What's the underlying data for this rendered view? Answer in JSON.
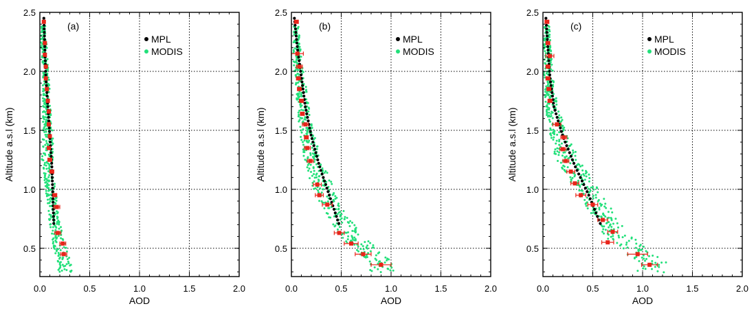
{
  "colors": {
    "mpl": "#000000",
    "modis": "#22e07a",
    "error": "#e8251a",
    "axis": "#000000",
    "grid": "#000000"
  },
  "chart_data": [
    {
      "type": "scatter",
      "panel_label": "(a)",
      "xlabel": "AOD",
      "ylabel": "Altitude a.s.l (km)",
      "xlim": [
        0.0,
        2.0
      ],
      "ylim": [
        0.25,
        2.5
      ],
      "xticks": [
        "0.0",
        "0.5",
        "1.0",
        "1.5",
        "2.0"
      ],
      "yticks": [
        "0.5",
        "1.0",
        "1.5",
        "2.0",
        "2.5"
      ],
      "grid": true,
      "legend": {
        "position": "top-right",
        "entries": [
          "MPL",
          "MODIS"
        ]
      },
      "mpl_profile": {
        "x": [
          0.04,
          0.05,
          0.06,
          0.08,
          0.1,
          0.12,
          0.13,
          0.14
        ],
        "y": [
          2.45,
          2.2,
          1.95,
          1.7,
          1.45,
          1.2,
          0.95,
          0.7
        ]
      },
      "modis_scatter": {
        "x_center": [
          0.03,
          0.04,
          0.06,
          0.07,
          0.08,
          0.08,
          0.1,
          0.13,
          0.17,
          0.25
        ],
        "y_center": [
          2.42,
          2.2,
          1.95,
          1.7,
          1.45,
          1.25,
          1.05,
          0.85,
          0.6,
          0.38
        ],
        "spread": [
          0.02,
          0.03,
          0.03,
          0.04,
          0.05,
          0.06,
          0.05,
          0.05,
          0.06,
          0.07
        ]
      },
      "red_means": {
        "x": [
          0.04,
          0.05,
          0.05,
          0.06,
          0.06,
          0.07,
          0.08,
          0.09,
          0.09,
          0.1,
          0.09,
          0.1,
          0.12,
          0.15,
          0.17,
          0.18,
          0.23,
          0.24
        ],
        "y": [
          2.42,
          2.24,
          2.14,
          2.04,
          1.94,
          1.85,
          1.75,
          1.66,
          1.55,
          1.45,
          1.35,
          1.25,
          1.15,
          0.95,
          0.85,
          0.63,
          0.54,
          0.45
        ],
        "xerr": [
          0.01,
          0.01,
          0.01,
          0.01,
          0.01,
          0.01,
          0.01,
          0.01,
          0.01,
          0.01,
          0.01,
          0.02,
          0.02,
          0.02,
          0.03,
          0.03,
          0.03,
          0.03
        ]
      }
    },
    {
      "type": "scatter",
      "panel_label": "(b)",
      "xlabel": "AOD",
      "ylabel": "Altitude a.s.l (km)",
      "xlim": [
        0.0,
        2.0
      ],
      "ylim": [
        0.25,
        2.5
      ],
      "xticks": [
        "0.0",
        "0.5",
        "1.0",
        "1.5",
        "2.0"
      ],
      "yticks": [
        "0.5",
        "1.0",
        "1.5",
        "2.0",
        "2.5"
      ],
      "grid": true,
      "legend": {
        "position": "top-right",
        "entries": [
          "MPL",
          "MODIS"
        ]
      },
      "mpl_profile": {
        "x": [
          0.03,
          0.06,
          0.1,
          0.14,
          0.2,
          0.28,
          0.38,
          0.48
        ],
        "y": [
          2.45,
          2.2,
          1.95,
          1.7,
          1.45,
          1.2,
          0.95,
          0.7
        ]
      },
      "modis_scatter": {
        "x_center": [
          0.05,
          0.06,
          0.09,
          0.12,
          0.15,
          0.2,
          0.28,
          0.4,
          0.6,
          0.9
        ],
        "y_center": [
          2.3,
          2.1,
          1.9,
          1.7,
          1.5,
          1.3,
          1.1,
          0.85,
          0.6,
          0.38
        ],
        "spread": [
          0.03,
          0.04,
          0.05,
          0.06,
          0.07,
          0.08,
          0.1,
          0.1,
          0.12,
          0.13
        ]
      },
      "red_means": {
        "x": [
          0.05,
          0.06,
          0.08,
          0.07,
          0.08,
          0.1,
          0.11,
          0.14,
          0.15,
          0.16,
          0.19,
          0.26,
          0.28,
          0.36,
          0.48,
          0.6,
          0.72,
          0.9
        ],
        "y": [
          2.42,
          2.15,
          2.04,
          1.94,
          1.85,
          1.75,
          1.64,
          1.55,
          1.44,
          1.35,
          1.24,
          1.04,
          0.95,
          0.87,
          0.63,
          0.54,
          0.45,
          0.36
        ],
        "xerr": [
          0.02,
          0.06,
          0.03,
          0.02,
          0.02,
          0.02,
          0.02,
          0.03,
          0.02,
          0.03,
          0.03,
          0.04,
          0.04,
          0.05,
          0.05,
          0.07,
          0.08,
          0.1
        ]
      }
    },
    {
      "type": "scatter",
      "panel_label": "(c)",
      "xlabel": "AOD",
      "ylabel": "Altitude a.s.l (km)",
      "xlim": [
        0.0,
        2.0
      ],
      "ylim": [
        0.25,
        2.5
      ],
      "xticks": [
        "0.0",
        "0.5",
        "1.0",
        "1.5",
        "2.0"
      ],
      "yticks": [
        "0.5",
        "1.0",
        "1.5",
        "2.0",
        "2.5"
      ],
      "grid": true,
      "legend": {
        "position": "top-right",
        "entries": [
          "MPL",
          "MODIS"
        ]
      },
      "mpl_profile": {
        "x": [
          0.03,
          0.05,
          0.07,
          0.11,
          0.2,
          0.32,
          0.46,
          0.58
        ],
        "y": [
          2.45,
          2.2,
          1.95,
          1.7,
          1.45,
          1.2,
          0.95,
          0.7
        ]
      },
      "modis_scatter": {
        "x_center": [
          0.04,
          0.05,
          0.06,
          0.09,
          0.15,
          0.25,
          0.4,
          0.55,
          0.75,
          1.1
        ],
        "y_center": [
          2.3,
          2.1,
          1.9,
          1.7,
          1.45,
          1.25,
          1.05,
          0.85,
          0.6,
          0.38
        ],
        "spread": [
          0.03,
          0.04,
          0.05,
          0.06,
          0.1,
          0.12,
          0.12,
          0.12,
          0.13,
          0.15
        ]
      },
      "red_means": {
        "x": [
          0.04,
          0.05,
          0.07,
          0.05,
          0.05,
          0.06,
          0.07,
          0.14,
          0.21,
          0.2,
          0.23,
          0.28,
          0.32,
          0.38,
          0.5,
          0.6,
          0.65,
          0.7,
          0.95,
          1.07
        ],
        "y": [
          2.42,
          2.24,
          2.13,
          2.04,
          1.94,
          1.85,
          1.75,
          1.55,
          1.44,
          1.34,
          1.24,
          1.15,
          1.05,
          0.95,
          0.87,
          0.74,
          0.55,
          0.64,
          0.45,
          0.36
        ],
        "xerr": [
          0.02,
          0.02,
          0.04,
          0.02,
          0.02,
          0.02,
          0.02,
          0.04,
          0.03,
          0.03,
          0.03,
          0.04,
          0.04,
          0.05,
          0.05,
          0.05,
          0.06,
          0.05,
          0.1,
          0.08
        ]
      }
    }
  ]
}
